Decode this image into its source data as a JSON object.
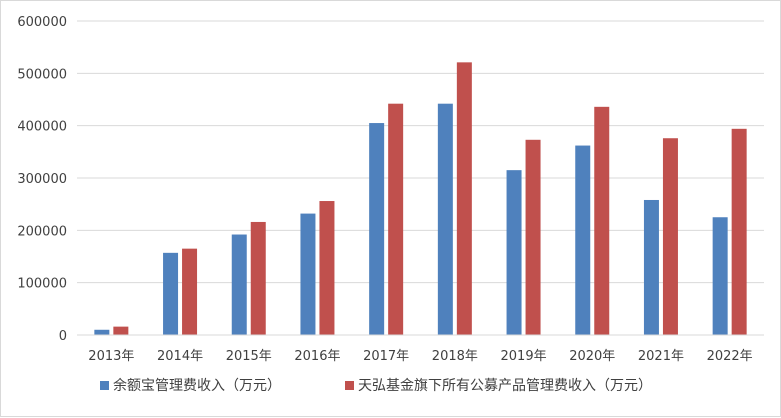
{
  "chart_data": {
    "type": "bar",
    "title": "",
    "xlabel": "",
    "ylabel": "",
    "ylim": [
      0,
      600000
    ],
    "yticks": [
      0,
      100000,
      200000,
      300000,
      400000,
      500000,
      600000
    ],
    "ytick_labels": [
      "0",
      "100000",
      "200000",
      "300000",
      "400000",
      "500000",
      "600000"
    ],
    "grid": true,
    "legend_position": "bottom",
    "categories": [
      "2013年",
      "2014年",
      "2015年",
      "2016年",
      "2017年",
      "2018年",
      "2019年",
      "2020年",
      "2021年",
      "2022年"
    ],
    "series": [
      {
        "name": "余额宝管理费收入（万元）",
        "color": "#4f81bd",
        "values": [
          10000,
          157000,
          192000,
          232000,
          405000,
          442000,
          315000,
          362000,
          258000,
          225000
        ]
      },
      {
        "name": "天弘基金旗下所有公募产品管理费收入（万元）",
        "color": "#c0504d",
        "values": [
          16000,
          165000,
          216000,
          256000,
          442000,
          521000,
          373000,
          436000,
          376000,
          394000
        ]
      }
    ]
  }
}
